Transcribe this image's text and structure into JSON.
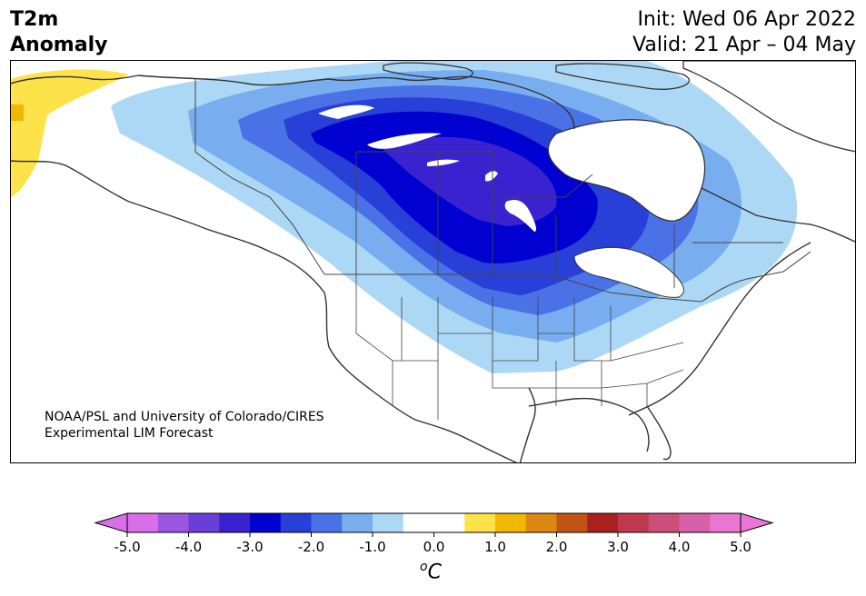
{
  "header": {
    "title_line1": "T2m",
    "title_line2": "Anomaly",
    "init_label": "Init: Wed 06 Apr 2022",
    "valid_label": "Valid: 21 Apr – 04 May"
  },
  "credit": {
    "line1": "NOAA/PSL and University of Colorado/CIRES",
    "line2": "Experimental LIM Forecast"
  },
  "colorbar": {
    "unit_sup": "o",
    "unit_main": "C",
    "ticks": [
      "-5.0",
      "-4.0",
      "-3.0",
      "-2.0",
      "-1.0",
      "0.0",
      "1.0",
      "2.0",
      "3.0",
      "4.0",
      "5.0"
    ],
    "colors": [
      "#da6de8",
      "#9a56e0",
      "#6a3ed8",
      "#3a22d0",
      "#0000d0",
      "#2840d8",
      "#4a72e6",
      "#78aef0",
      "#acd8f6",
      "#ffffff",
      "#ffffff",
      "#fde24a",
      "#f2b800",
      "#dc8712",
      "#c45414",
      "#aa2020",
      "#c03850",
      "#cc4e7a",
      "#d860a8",
      "#e876d2"
    ],
    "under_color": "#da6de8",
    "over_color": "#e876d2"
  },
  "map": {
    "colors": {
      "c_m05": "#acd8f6",
      "c_m10": "#78aef0",
      "c_m15": "#4a72e6",
      "c_m20": "#2840d8",
      "c_m25": "#0000d0",
      "c_m30": "#3a22d0",
      "c_p05": "#fde24a",
      "c_p10": "#f2b800"
    }
  }
}
